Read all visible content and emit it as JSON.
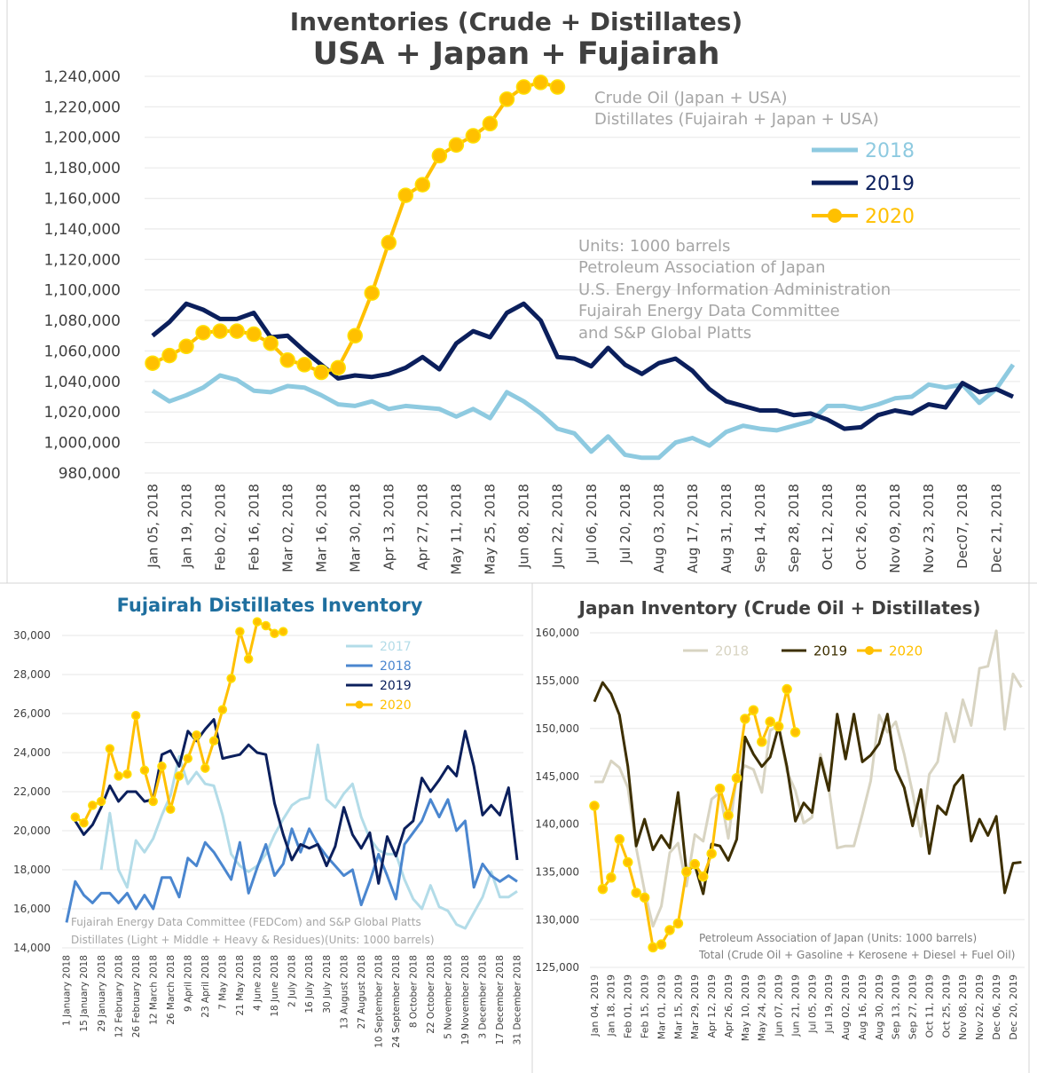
{
  "chart_data": [
    {
      "type": "line",
      "title": "Inventories (Crude + Distillates)",
      "subtitle": "USA + Japan + Fujairah",
      "notes_top": [
        "Crude Oil (Japan + USA)",
        "Distillates (Fujairah + Japan + USA)"
      ],
      "notes_bottom": [
        "Units: 1000 barrels",
        "Petroleum Association of Japan",
        "U.S. Energy Information Administration",
        "Fujairah Energy Data Committee",
        "and S&P Global Platts"
      ],
      "xlabel": "",
      "ylabel": "",
      "ylim": [
        980000,
        1240000
      ],
      "ytick_step": 20000,
      "yticks": [
        "980,000",
        "1,000,000",
        "1,020,000",
        "1,040,000",
        "1,060,000",
        "1,080,000",
        "1,100,000",
        "1,120,000",
        "1,140,000",
        "1,160,000",
        "1,180,000",
        "1,200,000",
        "1,220,000",
        "1,240,000"
      ],
      "x_tick_labels": [
        "Jan 05, 2018",
        "Jan 19, 2018",
        "Feb 02, 2018",
        "Feb 16, 2018",
        "Mar 02, 2018",
        "Mar 16, 2018",
        "Mar 30, 2018",
        "Apr 13, 2018",
        "Apr 27, 2018",
        "May 11, 2018",
        "May 25, 2018",
        "Jun 08, 2018",
        "Jun 22, 2018",
        "Jul 06, 2018",
        "Jul 20, 2018",
        "Aug 03, 2018",
        "Aug 17, 2018",
        "Aug 31, 2018",
        "Sep 14, 2018",
        "Sep 28, 2018",
        "Oct 12, 2018",
        "Oct 26, 2018",
        "Nov 09, 2018",
        "Nov 23, 2018",
        "Dec07, 2018",
        "Dec 21, 2018"
      ],
      "grid": true,
      "legend_position": "right",
      "series": [
        {
          "name": "2018",
          "color": "#8ecae0",
          "markers": false,
          "values": [
            1034000,
            1027000,
            1031000,
            1036000,
            1044000,
            1041000,
            1034000,
            1033000,
            1037000,
            1036000,
            1031000,
            1025000,
            1024000,
            1027000,
            1022000,
            1024000,
            1023000,
            1022000,
            1017000,
            1022000,
            1016000,
            1033000,
            1027000,
            1019000,
            1009000,
            1006000,
            994000,
            1004000,
            992000,
            990000,
            990000,
            1000000,
            1003000,
            998000,
            1007000,
            1011000,
            1009000,
            1008000,
            1011000,
            1014000,
            1024000,
            1024000,
            1022000,
            1025000,
            1029000,
            1030000,
            1038000,
            1036000,
            1038000,
            1026000,
            1035000,
            1051000
          ]
        },
        {
          "name": "2019",
          "color": "#0b1f5c",
          "markers": false,
          "values": [
            1070000,
            1079000,
            1091000,
            1087000,
            1081000,
            1081000,
            1085000,
            1069000,
            1070000,
            1060000,
            1051000,
            1042000,
            1044000,
            1043000,
            1045000,
            1049000,
            1056000,
            1048000,
            1065000,
            1073000,
            1069000,
            1085000,
            1091000,
            1080000,
            1056000,
            1055000,
            1050000,
            1062000,
            1051000,
            1045000,
            1052000,
            1055000,
            1047000,
            1035000,
            1027000,
            1024000,
            1021000,
            1021000,
            1018000,
            1019000,
            1015000,
            1009000,
            1010000,
            1018000,
            1021000,
            1019000,
            1025000,
            1023000,
            1039000,
            1033000,
            1035000,
            1030000
          ]
        },
        {
          "name": "2020",
          "color": "#ffc000",
          "markers": true,
          "values": [
            1052000,
            1057000,
            1063000,
            1072000,
            1073000,
            1073000,
            1071000,
            1065000,
            1054000,
            1051000,
            1046000,
            1049000,
            1070000,
            1098000,
            1131000,
            1162000,
            1169000,
            1188000,
            1195000,
            1201000,
            1209000,
            1225000,
            1233000,
            1236000,
            1233000
          ]
        }
      ]
    },
    {
      "type": "line",
      "title": "Fujairah Distillates Inventory",
      "notes": [
        "Fujairah Energy Data Committee  (FEDCom) and S&P Global Platts",
        "Distillates (Light + Middle + Heavy & Residues)(Units: 1000 barrels)"
      ],
      "xlabel": "",
      "ylabel": "",
      "ylim": [
        14000,
        30000
      ],
      "ytick_step": 2000,
      "yticks": [
        "14,000",
        "16,000",
        "18,000",
        "20,000",
        "22,000",
        "24,000",
        "26,000",
        "28,000",
        "30,000"
      ],
      "x_tick_labels": [
        "1 January 2018",
        "15 January 2018",
        "29 January 2018",
        "12 February 2018",
        "26 February 2018",
        "12 March 2018",
        "26 March 2018",
        "9 April 2018",
        "23 April 2018",
        "7 May 2018",
        "21 May 2018",
        "4 June 2018",
        "18 June 2018",
        "2 July 2018",
        "16 July 2018",
        "30 July 2018",
        "13 August 2018",
        "27 August 2018",
        "10 September 2018",
        "24 September 2018",
        "8 October 2018",
        "22 October 2018",
        "5 November 2018",
        "19 November 2018",
        "3 December 2018",
        "17 December 2018",
        "31 December 2018"
      ],
      "grid": true,
      "legend_position": "top-right",
      "series": [
        {
          "name": "2017",
          "color": "#b3dce8",
          "markers": false,
          "values": [
            null,
            null,
            null,
            null,
            18000,
            20900,
            18000,
            17100,
            19500,
            18900,
            19600,
            20800,
            21800,
            23800,
            22400,
            23000,
            22400,
            22300,
            20800,
            18800,
            18200,
            17900,
            18200,
            18800,
            19800,
            20600,
            21300,
            21600,
            21700,
            24400,
            21600,
            21200,
            21900,
            22400,
            20700,
            19600,
            19000,
            18800,
            18800,
            17500,
            16500,
            16000,
            17200,
            16100,
            15900,
            15200,
            15000,
            15800,
            16600,
            17900,
            16600,
            16600,
            16900
          ]
        },
        {
          "name": "2018",
          "color": "#4a86cf",
          "markers": false,
          "values": [
            15300,
            17400,
            16700,
            16300,
            16800,
            16800,
            16300,
            16800,
            16000,
            16700,
            16000,
            17600,
            17600,
            16600,
            18600,
            18200,
            19400,
            18900,
            18200,
            17500,
            19400,
            16800,
            18100,
            19300,
            17700,
            18300,
            20100,
            18900,
            20100,
            19300,
            18700,
            18200,
            17700,
            18000,
            16200,
            17400,
            18800,
            17700,
            16500,
            19300,
            19900,
            20500,
            21600,
            20700,
            21600,
            20000,
            20500,
            17100,
            18300,
            17700,
            17400,
            17700,
            17400
          ]
        },
        {
          "name": "2019",
          "color": "#0b1f5c",
          "markers": false,
          "values": [
            null,
            20500,
            19800,
            20300,
            21200,
            22300,
            21500,
            22000,
            22000,
            21500,
            21600,
            23900,
            24100,
            23300,
            25100,
            24600,
            25200,
            25700,
            23700,
            23800,
            23900,
            24400,
            24000,
            23900,
            21400,
            19800,
            18500,
            19300,
            19100,
            19300,
            18200,
            19200,
            21200,
            19800,
            19100,
            19900,
            17300,
            19700,
            18700,
            20100,
            20500,
            22700,
            22000,
            22600,
            23300,
            22800,
            25100,
            23300,
            20800,
            21300,
            20800,
            22200,
            18500
          ]
        },
        {
          "name": "2020",
          "color": "#ffc000",
          "markers": true,
          "values": [
            null,
            20700,
            20400,
            21300,
            21500,
            24200,
            22800,
            22900,
            25900,
            23100,
            21500,
            23300,
            21100,
            22800,
            23700,
            24900,
            23200,
            24600,
            26200,
            27800,
            30200,
            28800,
            30700,
            30500,
            30100,
            30200
          ]
        }
      ]
    },
    {
      "type": "line",
      "title": "Japan Inventory (Crude Oil + Distillates)",
      "notes": [
        "Petroleum Association of Japan  (Units: 1000 barrels)",
        "Total (Crude Oil + Gasoline + Kerosene + Diesel + Fuel Oil)"
      ],
      "xlabel": "",
      "ylabel": "",
      "ylim": [
        125000,
        160000
      ],
      "ytick_step": 5000,
      "yticks": [
        "125,000",
        "130,000",
        "135,000",
        "140,000",
        "145,000",
        "150,000",
        "155,000",
        "160,000"
      ],
      "x_tick_labels": [
        "Jan 04, 2019",
        "Jan 18, 2019",
        "Feb 01, 2019",
        "Feb 15, 2019",
        "Mar 01, 2019",
        "Mar 15, 2019",
        "Mar 29, 2019",
        "Apr 12, 2019",
        "Apr 26, 2019",
        "May 10, 2019",
        "May 24, 2019",
        "Jun 07, 2019",
        "Jun 21, 2019",
        "Jul 05, 2019",
        "Jul 19, 2019",
        "Aug 02, 2019",
        "Aug 16, 2019",
        "Aug 30, 2019",
        "Sep 13, 2019",
        "Sep 27, 2019",
        "Oct 11, 2019",
        "Oct 25, 2019",
        "Nov 08, 2019",
        "Nov 22, 2019",
        "Dec 06, 2019",
        "Dec 20, 2019"
      ],
      "grid": true,
      "legend_position": "top",
      "series": [
        {
          "name": "2018",
          "color": "#d8d4c2",
          "markers": false,
          "values": [
            144400,
            144400,
            146600,
            145900,
            143800,
            137500,
            133000,
            129300,
            131400,
            137000,
            138000,
            133500,
            138900,
            138200,
            142600,
            143300,
            138500,
            145000,
            146100,
            145700,
            143300,
            149800,
            150300,
            145500,
            143500,
            140100,
            140700,
            147300,
            143800,
            137500,
            137700,
            137700,
            141000,
            144500,
            151400,
            149600,
            150700,
            147300,
            143300,
            138700,
            145200,
            146500,
            151600,
            148600,
            153000,
            150300,
            156300,
            156500,
            160200,
            149900,
            155700,
            154300
          ]
        },
        {
          "name": "2019",
          "color": "#3d2f00",
          "markers": false,
          "values": [
            152800,
            154800,
            153600,
            151400,
            146000,
            137700,
            140500,
            137300,
            138800,
            137500,
            143300,
            135000,
            135700,
            132700,
            137900,
            137700,
            136200,
            138400,
            149100,
            147300,
            146000,
            147000,
            150200,
            146000,
            140300,
            142200,
            141200,
            146900,
            143500,
            151500,
            146800,
            151500,
            146500,
            147200,
            148400,
            151500,
            145700,
            143800,
            139800,
            143600,
            136900,
            141900,
            141000,
            144000,
            145100,
            138200,
            140500,
            138800,
            140800,
            132800,
            135900,
            136000
          ]
        },
        {
          "name": "2020",
          "color": "#ffc000",
          "markers": true,
          "values": [
            141900,
            133200,
            134400,
            138400,
            136000,
            132800,
            132300,
            127100,
            127400,
            128900,
            129600,
            135000,
            135800,
            134500,
            136900,
            143700,
            140900,
            144800,
            151000,
            151900,
            148600,
            150700,
            150200,
            154100,
            149600
          ]
        }
      ]
    }
  ]
}
